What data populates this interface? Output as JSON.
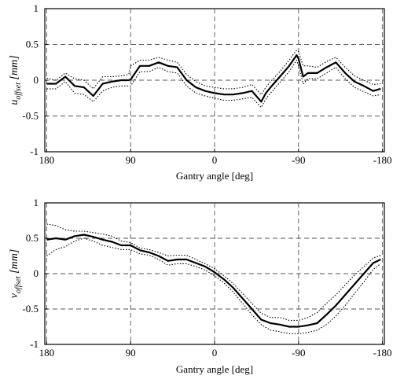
{
  "chart_data": [
    {
      "type": "line",
      "xlabel": "Gantry angle [deg]",
      "ylabel_main": "u",
      "ylabel_sub": "offset",
      "ylabel_unit": "[mm]",
      "x_ticks": [
        180,
        90,
        0,
        -90,
        -180
      ],
      "x_tick_labels": [
        "180",
        "90",
        "0",
        "-90",
        "-180"
      ],
      "y_ticks": [
        1,
        0.5,
        0,
        -0.5,
        -1
      ],
      "y_tick_labels": [
        "1",
        "0.5",
        "0",
        "-0.5",
        "-1"
      ],
      "xlim": [
        182,
        -182
      ],
      "ylim": [
        -1,
        1
      ],
      "x_reversed": true,
      "grid": "dashed",
      "x": [
        180,
        170,
        160,
        150,
        140,
        130,
        120,
        110,
        100,
        92,
        90,
        80,
        70,
        60,
        50,
        40,
        30,
        20,
        10,
        0,
        -10,
        -20,
        -30,
        -40,
        -50,
        -55,
        -60,
        -70,
        -80,
        -88,
        -90,
        -95,
        -100,
        -110,
        -120,
        -130,
        -140,
        -150,
        -160,
        -170,
        -178
      ],
      "series": [
        {
          "style": "solid",
          "values": [
            -0.05,
            -0.05,
            0.05,
            -0.08,
            -0.1,
            -0.22,
            -0.05,
            -0.02,
            0.0,
            0.0,
            0.01,
            0.2,
            0.2,
            0.25,
            0.2,
            0.18,
            0.0,
            -0.1,
            -0.15,
            -0.18,
            -0.2,
            -0.2,
            -0.18,
            -0.15,
            -0.3,
            -0.18,
            -0.1,
            0.05,
            0.2,
            0.35,
            0.3,
            0.05,
            0.1,
            0.1,
            0.18,
            0.25,
            0.1,
            -0.02,
            -0.08,
            -0.15,
            -0.12
          ]
        },
        {
          "style": "dotted",
          "values": [
            0.03,
            0.0,
            0.1,
            0.02,
            0.0,
            -0.12,
            0.05,
            0.05,
            0.06,
            0.08,
            0.2,
            0.28,
            0.28,
            0.32,
            0.28,
            0.25,
            0.08,
            -0.02,
            -0.08,
            -0.1,
            -0.12,
            -0.12,
            -0.1,
            -0.06,
            -0.2,
            -0.1,
            -0.02,
            0.12,
            0.28,
            0.42,
            0.4,
            0.2,
            0.2,
            0.18,
            0.26,
            0.32,
            0.18,
            0.06,
            0.0,
            -0.06,
            -0.05
          ]
        },
        {
          "style": "dotted",
          "values": [
            -0.12,
            -0.12,
            -0.02,
            -0.18,
            -0.2,
            -0.3,
            -0.15,
            -0.1,
            -0.08,
            -0.08,
            -0.08,
            0.12,
            0.12,
            0.18,
            0.12,
            0.1,
            -0.08,
            -0.18,
            -0.22,
            -0.25,
            -0.28,
            -0.28,
            -0.26,
            -0.24,
            -0.38,
            -0.26,
            -0.18,
            -0.03,
            0.12,
            0.28,
            0.2,
            -0.05,
            0.02,
            0.02,
            0.1,
            0.18,
            0.02,
            -0.1,
            -0.16,
            -0.22,
            -0.2
          ]
        }
      ]
    },
    {
      "type": "line",
      "xlabel": "Gantry angle [deg]",
      "ylabel_main": "v",
      "ylabel_sub": "offset",
      "ylabel_unit": "[mm]",
      "x_ticks": [
        180,
        90,
        0,
        -90,
        -180
      ],
      "x_tick_labels": [
        "180",
        "90",
        "0",
        "-90",
        "-180"
      ],
      "y_ticks": [
        1,
        0.5,
        0,
        -0.5,
        -1
      ],
      "y_tick_labels": [
        "1",
        "0.5",
        "0",
        "-0.5",
        "-1"
      ],
      "xlim": [
        182,
        -182
      ],
      "ylim": [
        -1,
        1
      ],
      "x_reversed": true,
      "grid": "dashed",
      "x": [
        180,
        170,
        160,
        150,
        140,
        130,
        120,
        110,
        100,
        90,
        80,
        70,
        60,
        50,
        40,
        30,
        20,
        10,
        0,
        -10,
        -20,
        -30,
        -40,
        -50,
        -60,
        -70,
        -80,
        -90,
        -100,
        -110,
        -120,
        -130,
        -140,
        -150,
        -160,
        -170,
        -178
      ],
      "series": [
        {
          "style": "solid",
          "values": [
            0.48,
            0.5,
            0.48,
            0.53,
            0.55,
            0.52,
            0.48,
            0.45,
            0.4,
            0.4,
            0.33,
            0.3,
            0.25,
            0.18,
            0.2,
            0.2,
            0.15,
            0.1,
            0.02,
            -0.08,
            -0.2,
            -0.35,
            -0.5,
            -0.65,
            -0.7,
            -0.72,
            -0.75,
            -0.75,
            -0.73,
            -0.7,
            -0.58,
            -0.45,
            -0.3,
            -0.15,
            0.0,
            0.15,
            0.2
          ]
        },
        {
          "style": "dotted",
          "values": [
            0.7,
            0.68,
            0.62,
            0.6,
            0.6,
            0.58,
            0.56,
            0.53,
            0.46,
            0.44,
            0.36,
            0.34,
            0.3,
            0.25,
            0.26,
            0.26,
            0.2,
            0.14,
            0.07,
            -0.03,
            -0.14,
            -0.28,
            -0.42,
            -0.56,
            -0.62,
            -0.62,
            -0.66,
            -0.66,
            -0.62,
            -0.55,
            -0.42,
            -0.3,
            -0.16,
            -0.02,
            0.1,
            0.22,
            0.26
          ]
        },
        {
          "style": "dotted",
          "values": [
            0.25,
            0.34,
            0.38,
            0.46,
            0.5,
            0.46,
            0.4,
            0.37,
            0.34,
            0.34,
            0.28,
            0.26,
            0.2,
            0.12,
            0.14,
            0.14,
            0.1,
            0.05,
            -0.03,
            -0.13,
            -0.26,
            -0.42,
            -0.58,
            -0.72,
            -0.8,
            -0.82,
            -0.85,
            -0.85,
            -0.83,
            -0.8,
            -0.72,
            -0.6,
            -0.45,
            -0.28,
            -0.12,
            0.06,
            0.14
          ]
        }
      ]
    }
  ]
}
